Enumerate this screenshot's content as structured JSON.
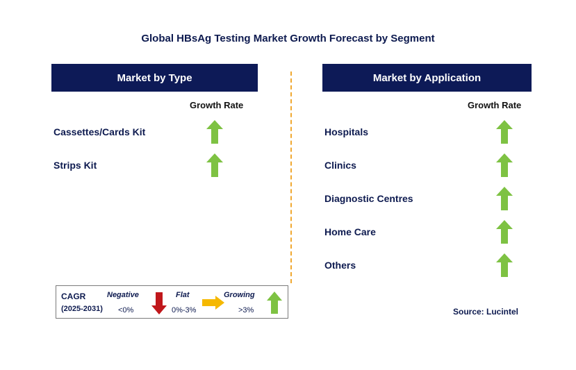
{
  "title": "Global HBsAg Testing Market Growth Forecast by Segment",
  "type_panel": {
    "header": "Market by Type",
    "growth_label": "Growth Rate",
    "items": [
      {
        "label": "Cassettes/Cards Kit",
        "trend": "growing"
      },
      {
        "label": "Strips Kit",
        "trend": "growing"
      }
    ]
  },
  "application_panel": {
    "header": "Market by Application",
    "growth_label": "Growth Rate",
    "items": [
      {
        "label": "Hospitals",
        "trend": "growing"
      },
      {
        "label": "Clinics",
        "trend": "growing"
      },
      {
        "label": "Diagnostic Centres",
        "trend": "growing"
      },
      {
        "label": "Home Care",
        "trend": "growing"
      },
      {
        "label": "Others",
        "trend": "growing"
      }
    ]
  },
  "legend": {
    "cagr_label": "CAGR",
    "period": "(2025-2031)",
    "negative": {
      "label": "Negative",
      "range": "<0%",
      "icon": "red-down-arrow-icon"
    },
    "flat": {
      "label": "Flat",
      "range": "0%-3%",
      "icon": "yellow-right-arrow-icon"
    },
    "growing": {
      "label": "Growing",
      "range": ">3%",
      "icon": "green-up-arrow-icon"
    }
  },
  "source": "Source: Lucintel",
  "colors": {
    "header_bg": "#0d1a57",
    "text": "#0d1a4f",
    "growing": "#7ec243",
    "negative": "#c0171b",
    "flat": "#f5b800",
    "divider": "#f0a830"
  }
}
